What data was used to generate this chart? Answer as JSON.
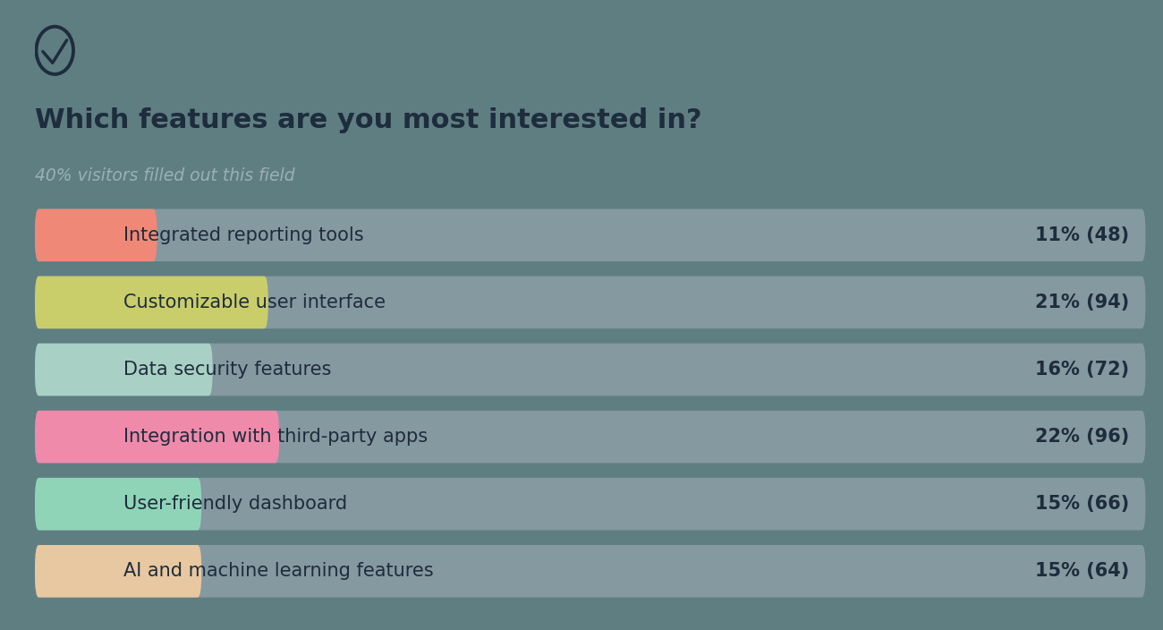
{
  "title": "Which features are you most interested in?",
  "subtitle": "40% visitors filled out this field",
  "background_color": "#5f7e82",
  "bar_bg_color": "#8599a0",
  "categories": [
    "Integrated reporting tools",
    "Customizable user interface",
    "Data security features",
    "Integration with third-party apps",
    "User-friendly dashboard",
    "AI and machine learning features"
  ],
  "values": [
    11,
    21,
    16,
    22,
    15,
    15
  ],
  "counts": [
    48,
    94,
    72,
    96,
    66,
    64
  ],
  "highlight_colors": [
    "#f08878",
    "#cace6a",
    "#a8d0c4",
    "#f08aaa",
    "#90d4b8",
    "#e8c8a0"
  ],
  "title_color": "#1e2d3d",
  "subtitle_color": "#9ab0b8",
  "label_color": "#1e2d3d",
  "value_color": "#1e2d3d",
  "figsize": [
    13.0,
    7.04
  ],
  "dpi": 100
}
